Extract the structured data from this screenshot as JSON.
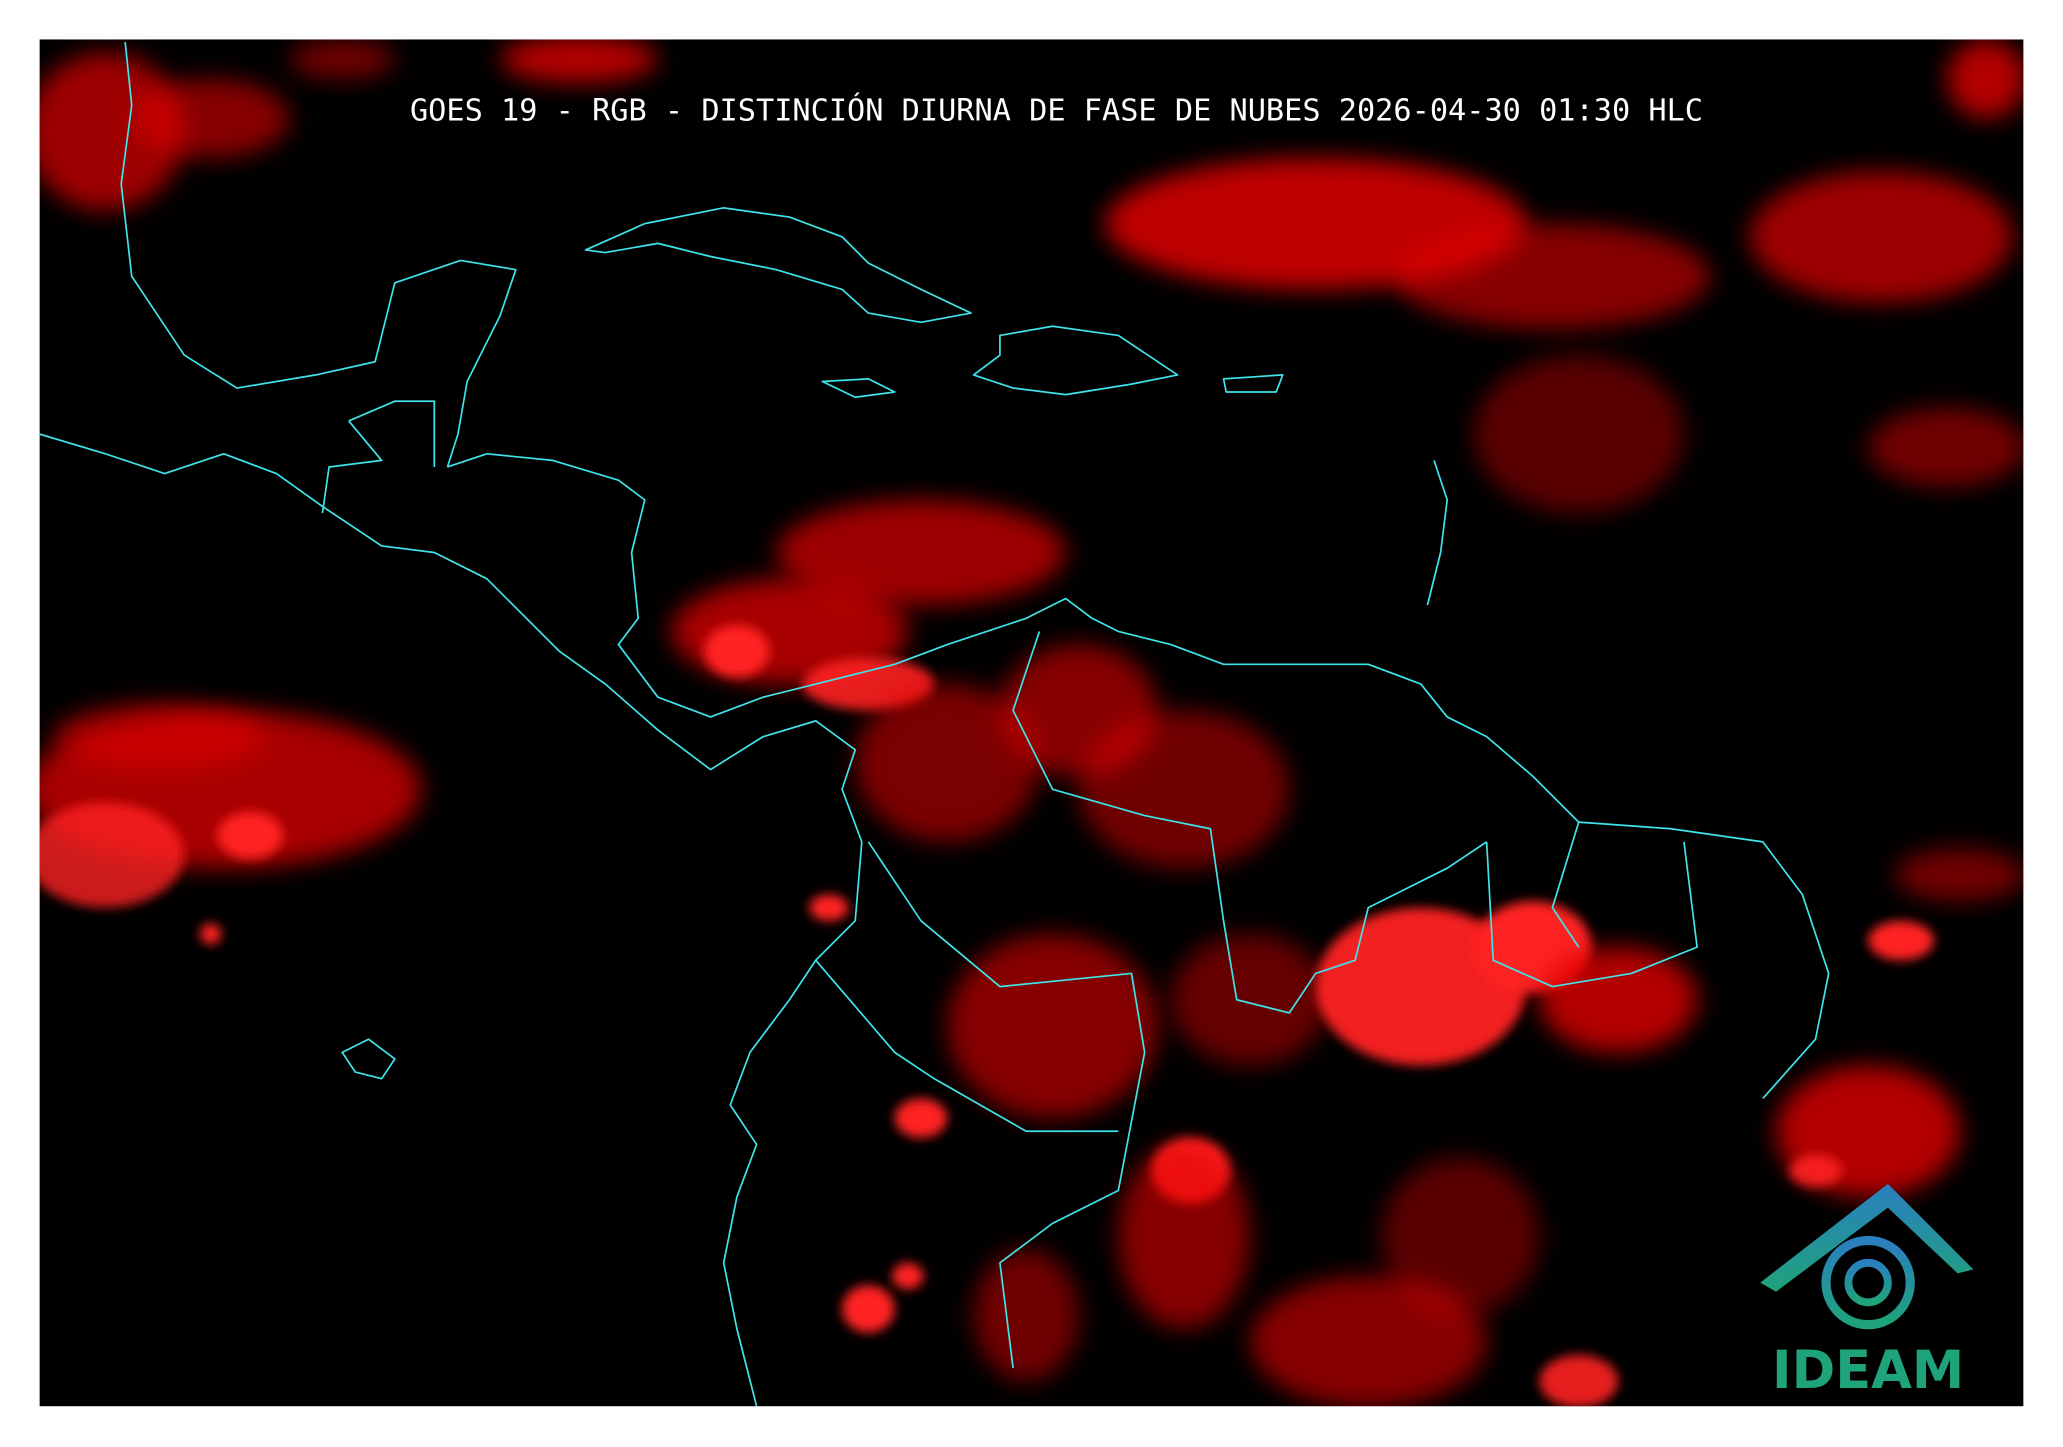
{
  "header": {
    "title": "GOES 19 - RGB - DISTINCIÓN DIURNA DE FASE DE NUBES 2026-04-30 01:30 HLC"
  },
  "logo": {
    "label": "IDEAM"
  }
}
